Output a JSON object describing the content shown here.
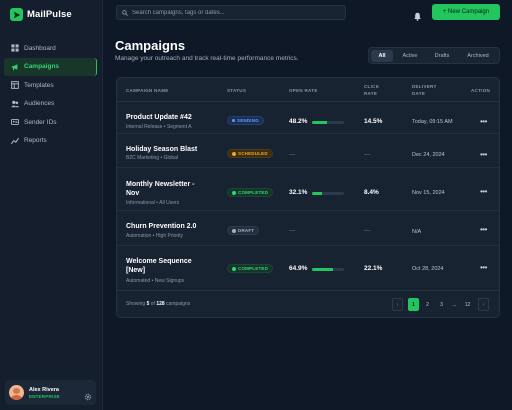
{
  "brand": {
    "name": "MailPulse"
  },
  "sidebar": {
    "items": [
      {
        "label": "Dashboard",
        "icon": "grid-icon"
      },
      {
        "label": "Campaigns",
        "icon": "megaphone-icon",
        "active": true
      },
      {
        "label": "Templates",
        "icon": "template-icon"
      },
      {
        "label": "Audiences",
        "icon": "users-icon"
      },
      {
        "label": "Sender IDs",
        "icon": "id-card-icon"
      },
      {
        "label": "Reports",
        "icon": "chart-icon"
      }
    ]
  },
  "user": {
    "name": "Alex Rivera",
    "plan": "ENTERPRISE"
  },
  "search": {
    "placeholder": "Search campaigns, tags or dates..."
  },
  "new_button": {
    "label": "+ New Campaign"
  },
  "header": {
    "title": "Campaigns",
    "subtitle": "Manage your outreach and track real-time performance metrics."
  },
  "filters": {
    "tabs": [
      "All",
      "Active",
      "Drafts",
      "Archived"
    ],
    "active": "All"
  },
  "table": {
    "headers": {
      "name": "CAMPAIGN NAME",
      "status": "STATUS",
      "open_rate": "OPEN RATE",
      "click_rate_1": "CLICK",
      "click_rate_2": "RATE",
      "delivery_date_1": "DELIVERY",
      "delivery_date_2": "DATE",
      "action": "ACTION"
    },
    "rows": [
      {
        "name": "Product Update #42",
        "name2": "",
        "sub": "Internal Release • Segment A",
        "status": "SENDING",
        "open_rate": "48.2%",
        "open_fill": 0.48,
        "click_rate": "14.5%",
        "date": "Today, 09:15 AM"
      },
      {
        "name": "Holiday Season Blast",
        "name2": "",
        "sub": "B2C Marketing • Global",
        "status": "SCHEDULED",
        "open_rate": "—",
        "click_rate": "—",
        "date": "Dec 24, 2024"
      },
      {
        "name": "Monthly Newsletter -",
        "name2": "Nov",
        "sub": "Informational • All Users",
        "status": "COMPLETED",
        "open_rate": "32.1%",
        "open_fill": 0.32,
        "click_rate": "8.4%",
        "date": "Nov 15, 2024"
      },
      {
        "name": "Churn Prevention 2.0",
        "name2": "",
        "sub": "Automation • High Priority",
        "status": "DRAFT",
        "open_rate": "—",
        "click_rate": "—",
        "date": "N/A"
      },
      {
        "name": "Welcome Sequence",
        "name2": "[New]",
        "sub": "Automated • New Signups",
        "status": "COMPLETED",
        "open_rate": "64.9%",
        "open_fill": 0.65,
        "click_rate": "22.1%",
        "date": "Oct 28, 2024"
      }
    ],
    "action_glyph": "•••"
  },
  "footer": {
    "prefix": "Showing",
    "shown": "5",
    "of": "of",
    "total": "128",
    "suffix": "campaigns",
    "pages": [
      "1",
      "2",
      "3",
      "...",
      "12"
    ],
    "prev": "‹",
    "next": "›"
  },
  "colors": {
    "accent": "#22c55e",
    "background": "#0f1826",
    "sidebar": "#141e2c",
    "card": "#182332"
  }
}
